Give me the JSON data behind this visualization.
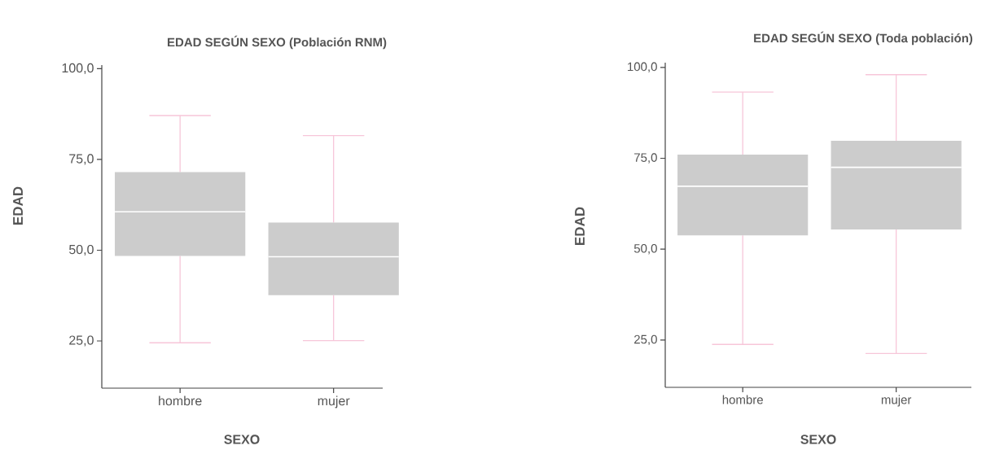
{
  "chart_data": [
    {
      "type": "box",
      "title": "EDAD SEGÚN SEXO (Población RNM)",
      "xlabel": "SEXO",
      "ylabel": "EDAD",
      "categories": [
        "hombre",
        "mujer"
      ],
      "color": "#cccccc",
      "boxes": [
        {
          "low": 24.5,
          "q1": 48.4,
          "median": 60.6,
          "q3": 71.5,
          "high": 87.1
        },
        {
          "low": 25.1,
          "q1": 37.6,
          "median": 48.2,
          "q3": 57.6,
          "high": 81.6
        }
      ],
      "ylim": [
        12,
        101
      ],
      "yticks": [
        {
          "value": 25,
          "label": "25,0"
        },
        {
          "value": 50,
          "label": "50,0"
        },
        {
          "value": 75,
          "label": "75,0"
        },
        {
          "value": 100,
          "label": "100,0"
        }
      ],
      "grid": false
    },
    {
      "type": "box",
      "title": "EDAD SEGÚN SEXO (Toda población)",
      "xlabel": "SEXO",
      "ylabel": "EDAD",
      "categories": [
        "hombre",
        "mujer"
      ],
      "color": "#cccccc",
      "boxes": [
        {
          "low": 23.8,
          "q1": 53.8,
          "median": 67.3,
          "q3": 76.0,
          "high": 93.2
        },
        {
          "low": 21.3,
          "q1": 55.4,
          "median": 72.5,
          "q3": 79.8,
          "high": 98.0
        }
      ],
      "ylim": [
        12,
        101.3
      ],
      "yticks": [
        {
          "value": 25,
          "label": "25,0"
        },
        {
          "value": 50,
          "label": "50,0"
        },
        {
          "value": 75,
          "label": "75,0"
        },
        {
          "value": 100,
          "label": "100,0"
        }
      ],
      "grid": false
    }
  ]
}
